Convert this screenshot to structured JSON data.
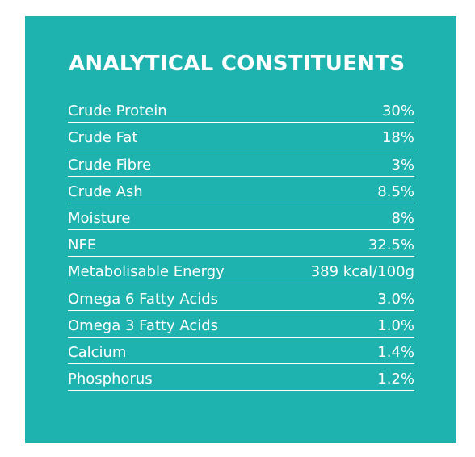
{
  "panel": {
    "title": "ANALYTICAL CONSTITUENTS",
    "background_color": "#1fb3b0",
    "text_color": "#ffffff",
    "rows": [
      {
        "label": "Crude Protein",
        "value": "30%"
      },
      {
        "label": "Crude Fat",
        "value": "18%"
      },
      {
        "label": "Crude Fibre",
        "value": "3%"
      },
      {
        "label": "Crude Ash",
        "value": "8.5%"
      },
      {
        "label": "Moisture",
        "value": "8%"
      },
      {
        "label": "NFE",
        "value": "32.5%"
      },
      {
        "label": "Metabolisable Energy",
        "value": "389 kcal/100g"
      },
      {
        "label": "Omega 6 Fatty Acids",
        "value": "3.0%"
      },
      {
        "label": "Omega 3 Fatty Acids",
        "value": "1.0%"
      },
      {
        "label": "Calcium",
        "value": "1.4%"
      },
      {
        "label": "Phosphorus",
        "value": "1.2%"
      }
    ]
  }
}
